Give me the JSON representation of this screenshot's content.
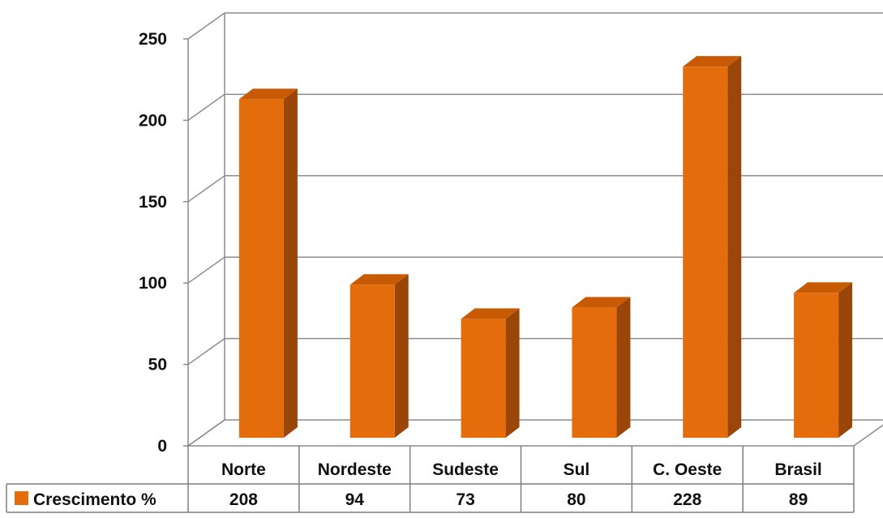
{
  "chart_data": {
    "type": "bar",
    "categories": [
      "Norte",
      "Nordeste",
      "Sudeste",
      "Sul",
      "C. Oeste",
      "Brasil"
    ],
    "series": [
      {
        "name": "Crescimento %",
        "values": [
          208,
          94,
          73,
          80,
          228,
          89
        ]
      }
    ],
    "y_ticks": [
      "0",
      "50",
      "100",
      "150",
      "200",
      "250"
    ],
    "ylim": [
      0,
      250
    ],
    "grid": true,
    "data_table": true,
    "legend_placement": "data table row header",
    "colors": {
      "bar_front": "#E46C0A",
      "bar_side": "#9A4608",
      "bar_top": "#C85A06",
      "gridline": "#8C8C8C",
      "table_border": "#7F7F7F"
    }
  }
}
